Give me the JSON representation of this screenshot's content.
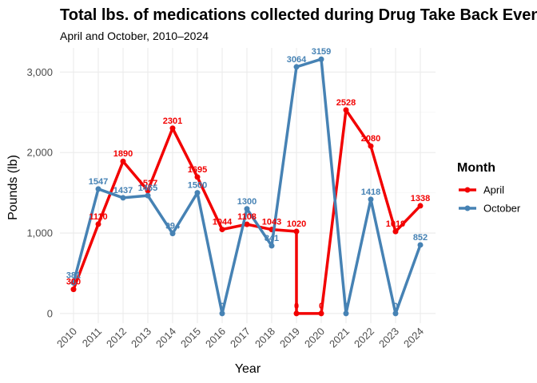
{
  "chart_data": {
    "type": "line",
    "title": "Total lbs. of medications collected during Drug Take Back Events",
    "subtitle": "April and October, 2010–2024",
    "xlabel": "Year",
    "ylabel": "Pounds (lb)",
    "x": [
      "2010",
      "2011",
      "2012",
      "2013",
      "2014",
      "2015",
      "2016",
      "2017",
      "2018",
      "2019",
      "2020",
      "2021",
      "2022",
      "2023",
      "2024"
    ],
    "ylim": [
      -120,
      3300
    ],
    "yticks": [
      0,
      1000,
      2000,
      3000
    ],
    "ytick_labels": [
      "0",
      "1,000",
      "2,000",
      "3,000"
    ],
    "grid": true,
    "legend": {
      "title": "Month",
      "position": "right"
    },
    "series": [
      {
        "name": "April",
        "color": "#f20000",
        "points": [
          {
            "x": 0,
            "y": 300
          },
          {
            "x": 1,
            "y": 1110
          },
          {
            "x": 2,
            "y": 1890
          },
          {
            "x": 3,
            "y": 1527
          },
          {
            "x": 4,
            "y": 2301
          },
          {
            "x": 5,
            "y": 1695
          },
          {
            "x": 6,
            "y": 1044
          },
          {
            "x": 7,
            "y": 1108
          },
          {
            "x": 8,
            "y": 1043
          },
          {
            "x": 9,
            "y": 1020
          },
          {
            "x": 9,
            "y": 0
          },
          {
            "x": 10,
            "y": 0
          },
          {
            "x": 11,
            "y": 2528
          },
          {
            "x": 12,
            "y": 2080
          },
          {
            "x": 13,
            "y": 1019
          },
          {
            "x": 14,
            "y": 1338
          }
        ],
        "labels": [
          "300",
          "1110",
          "1890",
          "1527",
          "2301",
          "1695",
          "1044",
          "1108",
          "1043",
          "1020",
          "0",
          "0",
          "2528",
          "2080",
          "1019",
          "1338"
        ]
      },
      {
        "name": "October",
        "color": "#4682b4",
        "points": [
          {
            "x": 0,
            "y": 381
          },
          {
            "x": 1,
            "y": 1547
          },
          {
            "x": 2,
            "y": 1437
          },
          {
            "x": 3,
            "y": 1465
          },
          {
            "x": 4,
            "y": 994
          },
          {
            "x": 5,
            "y": 1500
          },
          {
            "x": 6,
            "y": 0
          },
          {
            "x": 7,
            "y": 1300
          },
          {
            "x": 8,
            "y": 841
          },
          {
            "x": 9,
            "y": 3064
          },
          {
            "x": 10,
            "y": 3159
          },
          {
            "x": 11,
            "y": 0
          },
          {
            "x": 12,
            "y": 1418
          },
          {
            "x": 13,
            "y": 0
          },
          {
            "x": 14,
            "y": 852
          }
        ],
        "labels": [
          "381",
          "1547",
          "1437",
          "1465",
          "994",
          "1500",
          "0",
          "1300",
          "841",
          "3064",
          "3159",
          "0",
          "1418",
          "0",
          "852"
        ]
      }
    ]
  }
}
